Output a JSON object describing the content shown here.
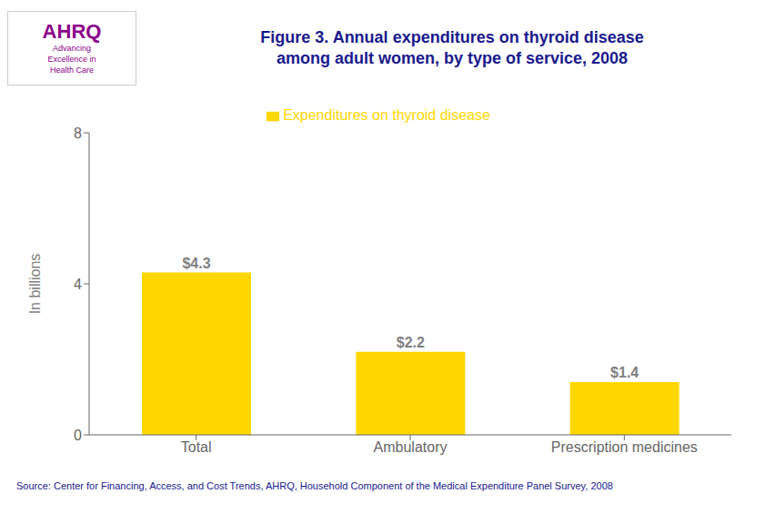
{
  "chart_data": {
    "type": "bar",
    "title": "Figure 3. Annual expenditures on thyroid disease\namong adult women, by type of service, 2008",
    "categories": [
      "Total",
      "Ambulatory",
      "Prescription medicines"
    ],
    "series": [
      {
        "name": "Expenditures on thyroid disease",
        "color": "#FFD700",
        "values": [
          4.3,
          2.2,
          1.4
        ],
        "value_labels": [
          "$4.3",
          "$2.2",
          "$1.4"
        ]
      }
    ],
    "data_labels": true,
    "ylabel": "In billions",
    "ylim": [
      0,
      8
    ],
    "yticks": [
      0,
      4,
      8
    ],
    "grid": false,
    "legend": "top",
    "annotations": [
      "AHRQ",
      "Advancing\nExcellence in\nHealth Care",
      "Source: Center for Financing, Access, and Cost Trends, AHRQ, Household Component of the Medical Expenditure Panel Survey,  2008"
    ]
  }
}
